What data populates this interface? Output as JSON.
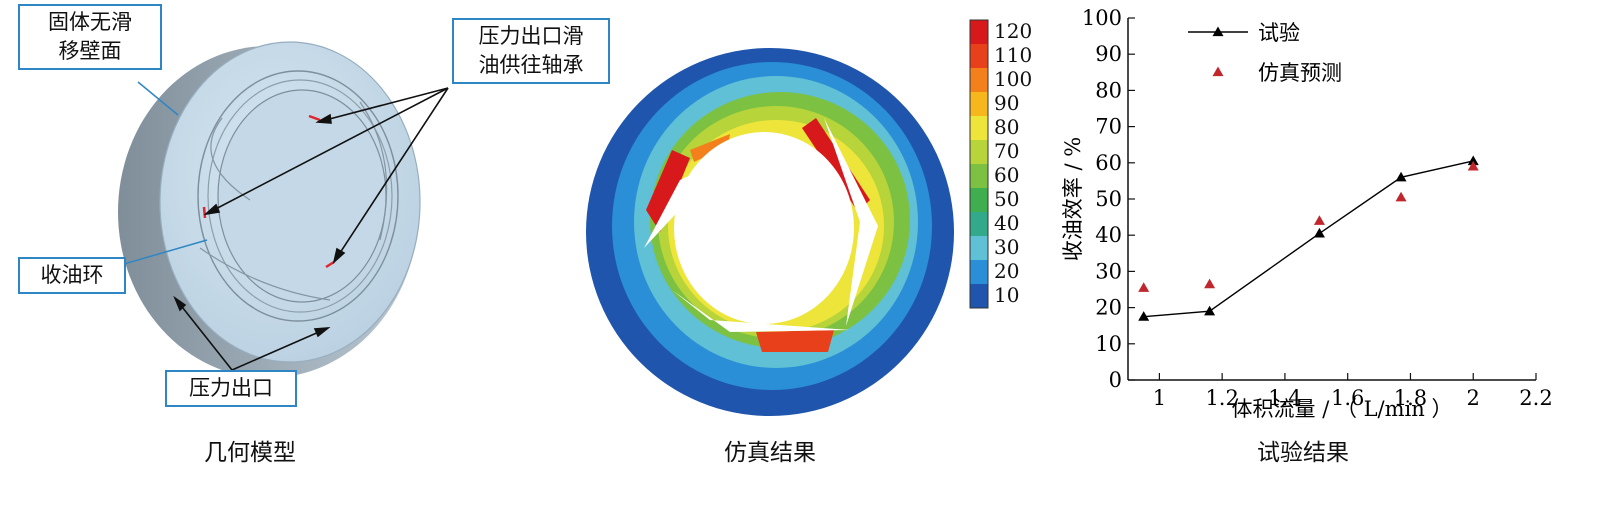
{
  "geometry": {
    "caption": "几何模型",
    "callouts": {
      "wall": "固体无滑\n移壁面",
      "bearing": "压力出口滑\n油供往轴承",
      "ring": "收油环",
      "outlet": "压力出口"
    }
  },
  "simulation": {
    "caption": "仿真结果",
    "colorbar": {
      "ticks": [
        "120",
        "110",
        "100",
        "90",
        "80",
        "70",
        "60",
        "50",
        "40",
        "30",
        "20",
        "10"
      ],
      "colors": [
        "#d7191c",
        "#e8401a",
        "#f4801c",
        "#f6b71c",
        "#eee53b",
        "#b7d43a",
        "#7cc142",
        "#3fae4f",
        "#32a98a",
        "#5fc0d6",
        "#2a8fd6",
        "#1f55ad"
      ]
    }
  },
  "test": {
    "caption": "试验结果"
  },
  "chart_data": {
    "type": "line",
    "xlabel": "体积流量 / （ L/min ）",
    "ylabel": "收油效率 / %",
    "xlim": [
      0.9,
      2.2
    ],
    "ylim": [
      0,
      100
    ],
    "xticks": [
      "1",
      "1.2",
      "1.4",
      "1.6",
      "1.8",
      "2",
      "2.2"
    ],
    "yticks": [
      "0",
      "10",
      "20",
      "30",
      "40",
      "50",
      "60",
      "70",
      "80",
      "90",
      "100"
    ],
    "legend_position": "top-left",
    "series": [
      {
        "name": "试验",
        "marker": "triangle",
        "color": "#000000",
        "line": true,
        "x": [
          0.95,
          1.16,
          1.51,
          1.77,
          2.0
        ],
        "y": [
          17.5,
          19,
          40.5,
          56,
          60.5
        ]
      },
      {
        "name": "仿真预测",
        "marker": "triangle",
        "color": "#c0272d",
        "line": false,
        "x": [
          0.95,
          1.16,
          1.51,
          1.77,
          2.0
        ],
        "y": [
          25.5,
          26.5,
          44,
          50.5,
          59
        ]
      }
    ]
  }
}
